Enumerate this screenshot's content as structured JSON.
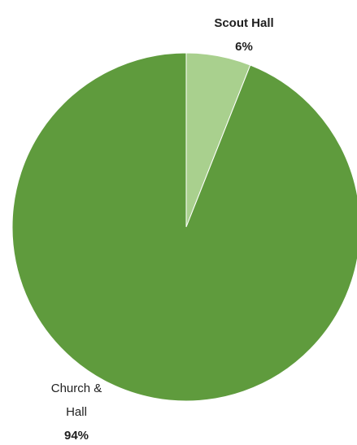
{
  "chart_data": {
    "type": "pie",
    "slices": [
      {
        "label": "Scout Hall",
        "value": 6,
        "value_label": "6%",
        "color": "#a9d08e"
      },
      {
        "label_lines": [
          "Church &",
          "Hall"
        ],
        "value": 94,
        "value_label": "94%",
        "color": "#5f9b3d"
      }
    ],
    "title": "",
    "legend": false
  }
}
